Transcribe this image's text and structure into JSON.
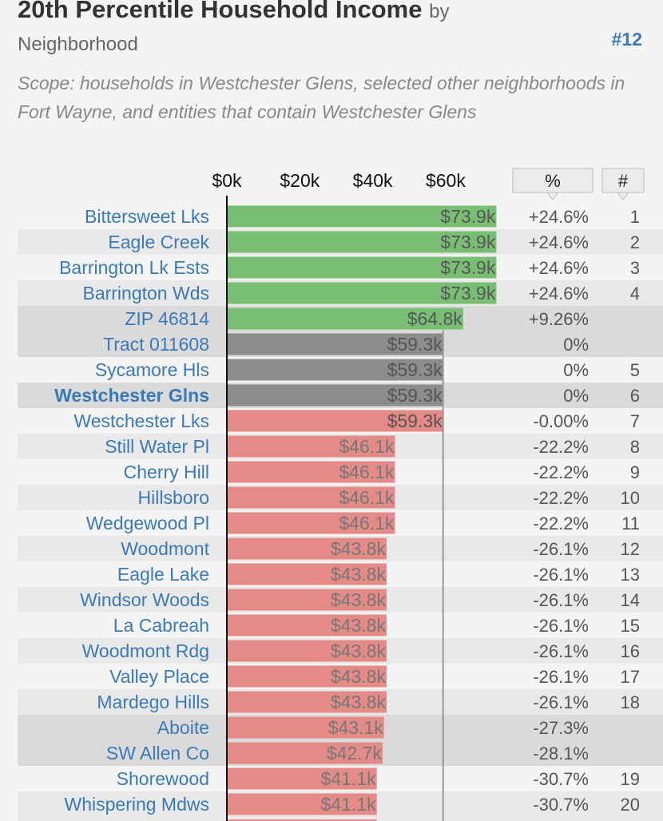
{
  "header": {
    "title": "20th Percentile Household Income",
    "title_by": "by",
    "subtitle": "Neighborhood",
    "rank_link": "#12",
    "scope": "Scope: households in Westchester Glens, selected other neighborhoods in Fort Wayne, and entities that contain Westchester Glens"
  },
  "columns": {
    "pct_header": "%",
    "rank_header": "#"
  },
  "colors": {
    "green": "#79bf73",
    "gray": "#8c8c8c",
    "red": "#e48a87",
    "link": "#3a7ab8"
  },
  "chart_data": {
    "type": "bar",
    "orientation": "horizontal",
    "title": "20th Percentile Household Income by Neighborhood",
    "x_ticks": [
      "$0k",
      "$20k",
      "$40k",
      "$60k"
    ],
    "x_tick_values": [
      0,
      20,
      40,
      60
    ],
    "xlim": [
      0,
      80
    ],
    "reference_value": 59.3,
    "rows": [
      {
        "name": "Bittersweet Lks",
        "value": 73.9,
        "label": "$73.9k",
        "pct": "+24.6%",
        "rank": "1",
        "color": "green",
        "highlight": false,
        "bold": false
      },
      {
        "name": "Eagle Creek",
        "value": 73.9,
        "label": "$73.9k",
        "pct": "+24.6%",
        "rank": "2",
        "color": "green",
        "highlight": false,
        "bold": false
      },
      {
        "name": "Barrington Lk Ests",
        "value": 73.9,
        "label": "$73.9k",
        "pct": "+24.6%",
        "rank": "3",
        "color": "green",
        "highlight": false,
        "bold": false
      },
      {
        "name": "Barrington Wds",
        "value": 73.9,
        "label": "$73.9k",
        "pct": "+24.6%",
        "rank": "4",
        "color": "green",
        "highlight": false,
        "bold": false
      },
      {
        "name": "ZIP 46814",
        "value": 64.8,
        "label": "$64.8k",
        "pct": "+9.26%",
        "rank": "",
        "color": "green",
        "highlight": true,
        "bold": false
      },
      {
        "name": "Tract 011608",
        "value": 59.3,
        "label": "$59.3k",
        "pct": "0%",
        "rank": "",
        "color": "gray",
        "highlight": true,
        "bold": false
      },
      {
        "name": "Sycamore Hls",
        "value": 59.3,
        "label": "$59.3k",
        "pct": "0%",
        "rank": "5",
        "color": "gray",
        "highlight": false,
        "bold": false
      },
      {
        "name": "Westchester Glns",
        "value": 59.3,
        "label": "$59.3k",
        "pct": "0%",
        "rank": "6",
        "color": "gray",
        "highlight": true,
        "bold": true
      },
      {
        "name": "Westchester Lks",
        "value": 59.3,
        "label": "$59.3k",
        "pct": "-0.00%",
        "rank": "7",
        "color": "red",
        "highlight": false,
        "bold": false
      },
      {
        "name": "Still Water Pl",
        "value": 46.1,
        "label": "$46.1k",
        "pct": "-22.2%",
        "rank": "8",
        "color": "red",
        "highlight": false,
        "bold": false
      },
      {
        "name": "Cherry Hill",
        "value": 46.1,
        "label": "$46.1k",
        "pct": "-22.2%",
        "rank": "9",
        "color": "red",
        "highlight": false,
        "bold": false
      },
      {
        "name": "Hillsboro",
        "value": 46.1,
        "label": "$46.1k",
        "pct": "-22.2%",
        "rank": "10",
        "color": "red",
        "highlight": false,
        "bold": false
      },
      {
        "name": "Wedgewood Pl",
        "value": 46.1,
        "label": "$46.1k",
        "pct": "-22.2%",
        "rank": "11",
        "color": "red",
        "highlight": false,
        "bold": false
      },
      {
        "name": "Woodmont",
        "value": 43.8,
        "label": "$43.8k",
        "pct": "-26.1%",
        "rank": "12",
        "color": "red",
        "highlight": false,
        "bold": false
      },
      {
        "name": "Eagle Lake",
        "value": 43.8,
        "label": "$43.8k",
        "pct": "-26.1%",
        "rank": "13",
        "color": "red",
        "highlight": false,
        "bold": false
      },
      {
        "name": "Windsor Woods",
        "value": 43.8,
        "label": "$43.8k",
        "pct": "-26.1%",
        "rank": "14",
        "color": "red",
        "highlight": false,
        "bold": false
      },
      {
        "name": "La Cabreah",
        "value": 43.8,
        "label": "$43.8k",
        "pct": "-26.1%",
        "rank": "15",
        "color": "red",
        "highlight": false,
        "bold": false
      },
      {
        "name": "Woodmont Rdg",
        "value": 43.8,
        "label": "$43.8k",
        "pct": "-26.1%",
        "rank": "16",
        "color": "red",
        "highlight": false,
        "bold": false
      },
      {
        "name": "Valley Place",
        "value": 43.8,
        "label": "$43.8k",
        "pct": "-26.1%",
        "rank": "17",
        "color": "red",
        "highlight": false,
        "bold": false
      },
      {
        "name": "Mardego Hills",
        "value": 43.8,
        "label": "$43.8k",
        "pct": "-26.1%",
        "rank": "18",
        "color": "red",
        "highlight": false,
        "bold": false
      },
      {
        "name": "Aboite",
        "value": 43.1,
        "label": "$43.1k",
        "pct": "-27.3%",
        "rank": "",
        "color": "red",
        "highlight": true,
        "bold": false
      },
      {
        "name": "SW Allen Co",
        "value": 42.7,
        "label": "$42.7k",
        "pct": "-28.1%",
        "rank": "",
        "color": "red",
        "highlight": true,
        "bold": false
      },
      {
        "name": "Shorewood",
        "value": 41.1,
        "label": "$41.1k",
        "pct": "-30.7%",
        "rank": "19",
        "color": "red",
        "highlight": false,
        "bold": false
      },
      {
        "name": "Whispering Mdws",
        "value": 41.1,
        "label": "$41.1k",
        "pct": "-30.7%",
        "rank": "20",
        "color": "red",
        "highlight": false,
        "bold": false
      }
    ]
  }
}
